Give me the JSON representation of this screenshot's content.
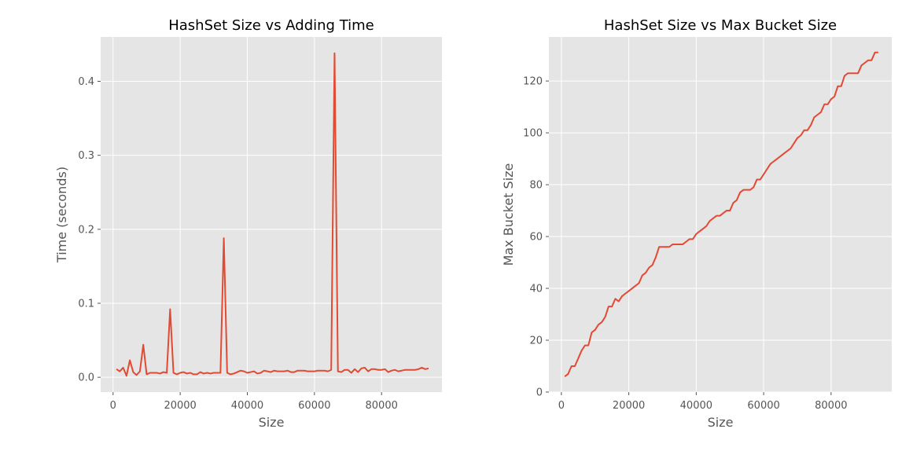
{
  "chart_data": [
    {
      "type": "line",
      "title": "HashSet Size vs Adding Time",
      "xlabel": "Size",
      "ylabel": "Time (seconds)",
      "xlim": [
        -3700,
        98000
      ],
      "ylim": [
        -0.02,
        0.46
      ],
      "xticks": [
        0,
        20000,
        40000,
        60000,
        80000
      ],
      "yticks": [
        0.0,
        0.1,
        0.2,
        0.3,
        0.4
      ],
      "ytick_labels": [
        "0.0",
        "0.1",
        "0.2",
        "0.3",
        "0.4"
      ],
      "grid": true,
      "line_color": "#E24A33",
      "background_color": "#E5E5E5",
      "series": [
        {
          "x": [
            1000,
            2000,
            3000,
            4000,
            5000,
            6000,
            7000,
            8000,
            9000,
            10000,
            11000,
            12000,
            13000,
            14000,
            15000,
            16000,
            17000,
            18000,
            19000,
            20000,
            21000,
            22000,
            23000,
            24000,
            25000,
            26000,
            27000,
            28000,
            29000,
            30000,
            31000,
            32000,
            33000,
            34000,
            35000,
            36000,
            37000,
            38000,
            39000,
            40000,
            41000,
            42000,
            43000,
            44000,
            45000,
            46000,
            47000,
            48000,
            49000,
            50000,
            51000,
            52000,
            53000,
            54000,
            55000,
            56000,
            57000,
            58000,
            59000,
            60000,
            61000,
            62000,
            63000,
            64000,
            65000,
            66000,
            67000,
            68000,
            69000,
            70000,
            71000,
            72000,
            73000,
            74000,
            75000,
            76000,
            77000,
            78000,
            79000,
            80000,
            81000,
            82000,
            83000,
            84000,
            85000,
            86000,
            87000,
            88000,
            89000,
            90000,
            91000,
            92000,
            93000,
            94000
          ],
          "values": [
            0.011,
            0.008,
            0.013,
            0.002,
            0.023,
            0.007,
            0.003,
            0.008,
            0.044,
            0.004,
            0.006,
            0.006,
            0.006,
            0.005,
            0.007,
            0.006,
            0.092,
            0.006,
            0.004,
            0.006,
            0.007,
            0.005,
            0.006,
            0.004,
            0.004,
            0.007,
            0.005,
            0.006,
            0.005,
            0.006,
            0.006,
            0.006,
            0.188,
            0.006,
            0.004,
            0.005,
            0.007,
            0.009,
            0.008,
            0.006,
            0.007,
            0.008,
            0.005,
            0.006,
            0.009,
            0.008,
            0.007,
            0.009,
            0.008,
            0.008,
            0.008,
            0.009,
            0.007,
            0.007,
            0.009,
            0.009,
            0.009,
            0.008,
            0.008,
            0.008,
            0.009,
            0.009,
            0.009,
            0.008,
            0.01,
            0.438,
            0.008,
            0.007,
            0.01,
            0.01,
            0.006,
            0.011,
            0.007,
            0.012,
            0.013,
            0.008,
            0.011,
            0.011,
            0.01,
            0.01,
            0.011,
            0.007,
            0.009,
            0.01,
            0.008,
            0.009,
            0.01,
            0.01,
            0.01,
            0.01,
            0.011,
            0.013,
            0.011,
            0.012
          ]
        }
      ]
    },
    {
      "type": "line",
      "title": "HashSet Size vs Max Bucket Size",
      "xlabel": "Size",
      "ylabel": "Max Bucket Size",
      "xlim": [
        -3700,
        98000
      ],
      "ylim": [
        0,
        137
      ],
      "xticks": [
        0,
        20000,
        40000,
        60000,
        80000
      ],
      "yticks": [
        0,
        20,
        40,
        60,
        80,
        100,
        120
      ],
      "ytick_labels": [
        "0",
        "20",
        "40",
        "60",
        "80",
        "100",
        "120"
      ],
      "grid": true,
      "line_color": "#E24A33",
      "background_color": "#E5E5E5",
      "series": [
        {
          "x": [
            1000,
            2000,
            3000,
            4000,
            5000,
            6000,
            7000,
            8000,
            9000,
            10000,
            11000,
            12000,
            13000,
            14000,
            15000,
            16000,
            17000,
            18000,
            19000,
            20000,
            21000,
            22000,
            23000,
            24000,
            25000,
            26000,
            27000,
            28000,
            29000,
            30000,
            31000,
            32000,
            33000,
            34000,
            35000,
            36000,
            37000,
            38000,
            39000,
            40000,
            41000,
            42000,
            43000,
            44000,
            45000,
            46000,
            47000,
            48000,
            49000,
            50000,
            51000,
            52000,
            53000,
            54000,
            55000,
            56000,
            57000,
            58000,
            59000,
            60000,
            61000,
            62000,
            63000,
            64000,
            65000,
            66000,
            67000,
            68000,
            69000,
            70000,
            71000,
            72000,
            73000,
            74000,
            75000,
            76000,
            77000,
            78000,
            79000,
            80000,
            81000,
            82000,
            83000,
            84000,
            85000,
            86000,
            87000,
            88000,
            89000,
            90000,
            91000,
            92000,
            93000,
            94000
          ],
          "values": [
            6,
            7,
            10,
            10,
            13,
            16,
            18,
            18,
            23,
            24,
            26,
            27,
            29,
            33,
            33,
            36,
            35,
            37,
            38,
            39,
            40,
            41,
            42,
            45,
            46,
            48,
            49,
            52,
            56,
            56,
            56,
            56,
            57,
            57,
            57,
            57,
            58,
            59,
            59,
            61,
            62,
            63,
            64,
            66,
            67,
            68,
            68,
            69,
            70,
            70,
            73,
            74,
            77,
            78,
            78,
            78,
            79,
            82,
            82,
            84,
            86,
            88,
            89,
            90,
            91,
            92,
            93,
            94,
            96,
            98,
            99,
            101,
            101,
            103,
            106,
            107,
            108,
            111,
            111,
            113,
            114,
            118,
            118,
            122,
            123,
            123,
            123,
            123,
            126,
            127,
            128,
            128,
            131,
            131
          ]
        }
      ]
    }
  ]
}
